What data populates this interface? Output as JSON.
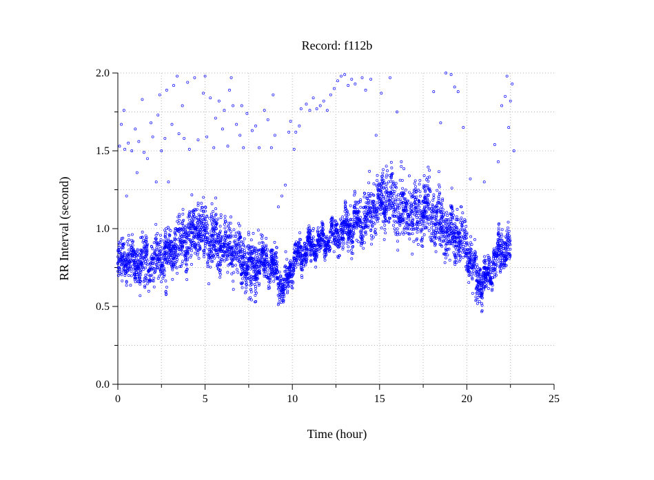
{
  "chart_data": {
    "type": "scatter",
    "title": "Record:  f112b",
    "xlabel": "Time (hour)",
    "ylabel": "RR Interval (second)",
    "xlim": [
      0,
      25
    ],
    "ylim": [
      0,
      2.0
    ],
    "xticks": [
      0,
      5,
      10,
      15,
      20,
      25
    ],
    "xtick_labels": [
      "0",
      "5",
      "10",
      "15",
      "20",
      "25"
    ],
    "xminor": [
      2.5,
      7.5,
      12.5,
      17.5,
      22.5
    ],
    "yticks": [
      0,
      0.5,
      1.0,
      1.5,
      2.0
    ],
    "ytick_labels": [
      "0.0",
      "0.5",
      "1.0",
      "1.5",
      "2.0"
    ],
    "yminor": [
      0.25,
      0.75,
      1.25,
      1.75
    ],
    "grid": true,
    "grid_style": "dotted",
    "marker": "open-circle",
    "series_color": "#0000ff",
    "trend": [
      [
        0.0,
        0.78
      ],
      [
        0.5,
        0.8
      ],
      [
        1.0,
        0.77
      ],
      [
        1.5,
        0.8
      ],
      [
        2.0,
        0.78
      ],
      [
        2.5,
        0.82
      ],
      [
        3.0,
        0.84
      ],
      [
        3.5,
        0.9
      ],
      [
        4.0,
        0.92
      ],
      [
        4.5,
        1.0
      ],
      [
        5.0,
        0.97
      ],
      [
        5.5,
        0.92
      ],
      [
        6.0,
        0.9
      ],
      [
        6.5,
        0.86
      ],
      [
        7.0,
        0.83
      ],
      [
        7.5,
        0.75
      ],
      [
        8.0,
        0.79
      ],
      [
        8.5,
        0.8
      ],
      [
        9.0,
        0.75
      ],
      [
        9.5,
        0.6
      ],
      [
        10.0,
        0.78
      ],
      [
        10.5,
        0.84
      ],
      [
        11.0,
        0.88
      ],
      [
        11.5,
        0.9
      ],
      [
        12.0,
        0.93
      ],
      [
        12.5,
        0.96
      ],
      [
        13.0,
        1.0
      ],
      [
        13.5,
        1.04
      ],
      [
        14.0,
        1.05
      ],
      [
        14.5,
        1.1
      ],
      [
        15.0,
        1.17
      ],
      [
        15.5,
        1.2
      ],
      [
        16.0,
        1.12
      ],
      [
        16.5,
        1.12
      ],
      [
        17.0,
        1.1
      ],
      [
        17.5,
        1.13
      ],
      [
        18.0,
        1.1
      ],
      [
        18.5,
        1.04
      ],
      [
        19.0,
        0.98
      ],
      [
        19.5,
        0.95
      ],
      [
        20.0,
        0.9
      ],
      [
        20.5,
        0.7
      ],
      [
        21.0,
        0.65
      ],
      [
        21.5,
        0.78
      ],
      [
        22.0,
        0.86
      ],
      [
        22.5,
        0.88
      ]
    ],
    "spread": [
      [
        0.0,
        0.11
      ],
      [
        3.0,
        0.13
      ],
      [
        4.5,
        0.16
      ],
      [
        7.5,
        0.13
      ],
      [
        9.5,
        0.09
      ],
      [
        10.5,
        0.07
      ],
      [
        12.0,
        0.06
      ],
      [
        13.5,
        0.12
      ],
      [
        15.5,
        0.16
      ],
      [
        18.0,
        0.17
      ],
      [
        20.0,
        0.14
      ],
      [
        21.0,
        0.1
      ],
      [
        22.5,
        0.12
      ]
    ],
    "dips": [
      [
        7.6,
        0.52
      ],
      [
        9.4,
        0.55
      ],
      [
        9.5,
        0.53
      ],
      [
        20.6,
        0.53
      ],
      [
        20.8,
        0.52
      ],
      [
        1.6,
        0.57
      ],
      [
        2.8,
        0.56
      ]
    ],
    "outliers": [
      [
        0.1,
        1.53
      ],
      [
        0.2,
        1.67
      ],
      [
        0.35,
        1.76
      ],
      [
        0.4,
        1.51
      ],
      [
        0.5,
        1.21
      ],
      [
        0.6,
        1.55
      ],
      [
        0.8,
        1.5
      ],
      [
        1.0,
        1.64
      ],
      [
        1.1,
        1.36
      ],
      [
        1.2,
        1.56
      ],
      [
        1.4,
        1.83
      ],
      [
        1.5,
        1.49
      ],
      [
        1.7,
        1.45
      ],
      [
        1.9,
        1.68
      ],
      [
        2.0,
        1.59
      ],
      [
        2.2,
        1.3
      ],
      [
        2.3,
        1.73
      ],
      [
        2.4,
        1.86
      ],
      [
        2.5,
        1.5
      ],
      [
        2.7,
        1.58
      ],
      [
        2.8,
        1.89
      ],
      [
        2.9,
        1.3
      ],
      [
        3.1,
        1.67
      ],
      [
        3.2,
        1.92
      ],
      [
        3.4,
        1.98
      ],
      [
        3.5,
        1.61
      ],
      [
        3.7,
        1.79
      ],
      [
        3.8,
        1.58
      ],
      [
        4.0,
        1.94
      ],
      [
        4.1,
        1.51
      ],
      [
        4.4,
        1.97
      ],
      [
        4.6,
        1.57
      ],
      [
        4.9,
        1.87
      ],
      [
        5.0,
        1.98
      ],
      [
        5.1,
        1.59
      ],
      [
        5.3,
        1.84
      ],
      [
        5.5,
        1.52
      ],
      [
        5.6,
        1.71
      ],
      [
        5.8,
        1.82
      ],
      [
        6.0,
        1.64
      ],
      [
        6.1,
        1.76
      ],
      [
        6.3,
        1.53
      ],
      [
        6.4,
        1.89
      ],
      [
        6.5,
        1.97
      ],
      [
        6.6,
        1.79
      ],
      [
        6.8,
        1.67
      ],
      [
        7.0,
        1.6
      ],
      [
        7.1,
        1.79
      ],
      [
        7.2,
        1.52
      ],
      [
        7.4,
        1.74
      ],
      [
        7.7,
        1.63
      ],
      [
        7.9,
        1.66
      ],
      [
        8.1,
        1.52
      ],
      [
        8.4,
        1.76
      ],
      [
        8.6,
        1.7
      ],
      [
        8.8,
        1.52
      ],
      [
        8.9,
        1.86
      ],
      [
        9.0,
        1.6
      ],
      [
        9.2,
        1.14
      ],
      [
        9.4,
        1.21
      ],
      [
        9.6,
        1.28
      ],
      [
        9.8,
        1.62
      ],
      [
        9.9,
        1.69
      ],
      [
        10.1,
        1.51
      ],
      [
        10.2,
        1.62
      ],
      [
        10.4,
        1.66
      ],
      [
        10.5,
        1.77
      ],
      [
        10.8,
        1.8
      ],
      [
        11.0,
        1.76
      ],
      [
        11.2,
        1.84
      ],
      [
        11.4,
        1.77
      ],
      [
        11.6,
        1.79
      ],
      [
        11.8,
        1.82
      ],
      [
        12.0,
        1.76
      ],
      [
        12.2,
        1.86
      ],
      [
        12.4,
        1.9
      ],
      [
        12.6,
        1.95
      ],
      [
        12.8,
        1.98
      ],
      [
        13.0,
        1.99
      ],
      [
        13.2,
        1.92
      ],
      [
        13.4,
        1.96
      ],
      [
        13.6,
        1.93
      ],
      [
        14.0,
        1.97
      ],
      [
        14.2,
        1.89
      ],
      [
        14.5,
        1.96
      ],
      [
        14.8,
        1.6
      ],
      [
        15.1,
        1.87
      ],
      [
        15.6,
        1.97
      ],
      [
        16.0,
        1.75
      ],
      [
        18.1,
        1.88
      ],
      [
        18.5,
        1.68
      ],
      [
        18.8,
        2.0
      ],
      [
        19.1,
        1.99
      ],
      [
        19.3,
        1.91
      ],
      [
        19.5,
        1.88
      ],
      [
        19.8,
        1.65
      ],
      [
        20.2,
        1.32
      ],
      [
        21.0,
        1.3
      ],
      [
        21.6,
        1.54
      ],
      [
        21.8,
        1.43
      ],
      [
        22.0,
        1.79
      ],
      [
        22.2,
        1.85
      ],
      [
        22.3,
        1.98
      ],
      [
        22.4,
        1.65
      ],
      [
        22.6,
        1.93
      ],
      [
        22.7,
        1.5
      ],
      [
        22.5,
        1.82
      ]
    ]
  }
}
